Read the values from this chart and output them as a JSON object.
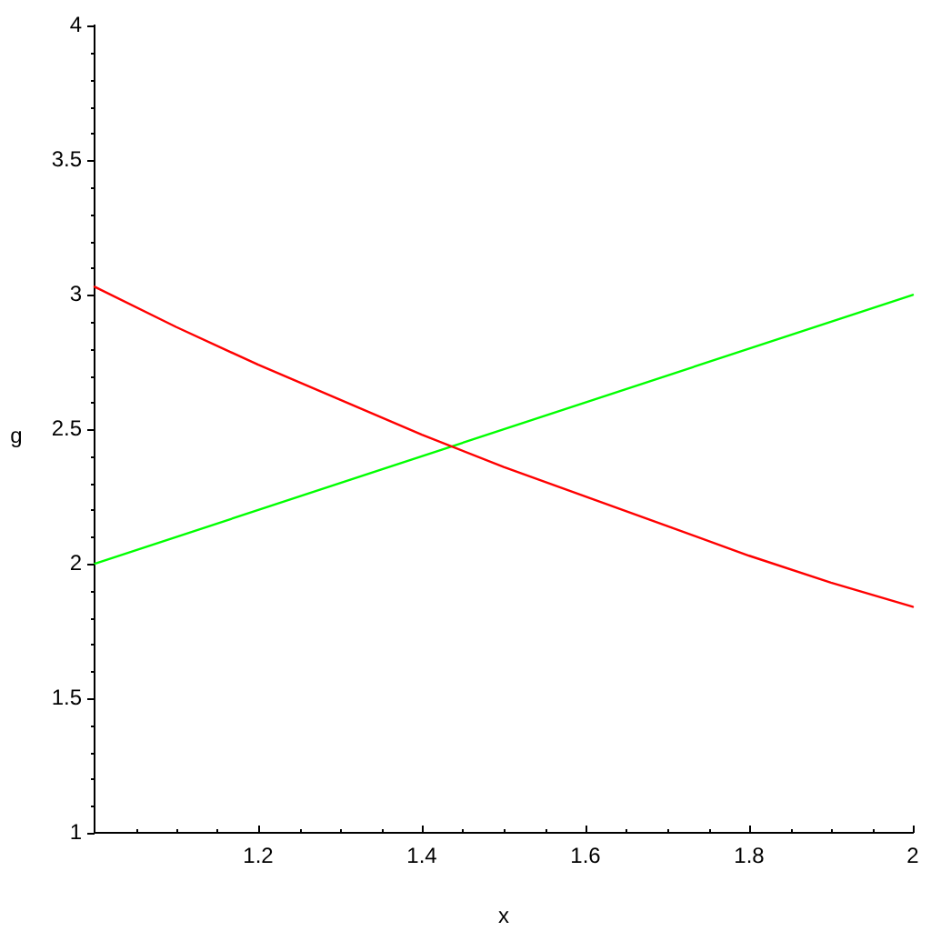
{
  "chart_data": {
    "type": "line",
    "xlabel": "x",
    "ylabel": "g",
    "series": [
      {
        "color": "#ff0000",
        "x": [
          1,
          1.1,
          1.2,
          1.3,
          1.4,
          1.5,
          1.6,
          1.7,
          1.8,
          1.9,
          2
        ],
        "values": [
          3.03,
          2.88,
          2.74,
          2.61,
          2.48,
          2.36,
          2.25,
          2.14,
          2.03,
          1.93,
          1.84
        ]
      },
      {
        "color": "#00ff00",
        "x": [
          1,
          2
        ],
        "values": [
          2,
          3
        ]
      }
    ],
    "xlim": [
      1,
      2
    ],
    "ylim": [
      1,
      4
    ],
    "xticks": [
      {
        "value": 1.05,
        "label": null
      },
      {
        "value": 1.1,
        "label": null
      },
      {
        "value": 1.15,
        "label": null
      },
      1.2,
      {
        "value": 1.25,
        "label": null
      },
      {
        "value": 1.3,
        "label": null
      },
      {
        "value": 1.35,
        "label": null
      },
      1.4,
      {
        "value": 1.45,
        "label": null
      },
      {
        "value": 1.5,
        "label": null
      },
      {
        "value": 1.55,
        "label": null
      },
      1.6,
      {
        "value": 1.65,
        "label": null
      },
      {
        "value": 1.7,
        "label": null
      },
      {
        "value": 1.75,
        "label": null
      },
      1.8,
      {
        "value": 1.85,
        "label": null
      },
      {
        "value": 1.9,
        "label": null
      },
      {
        "value": 1.95,
        "label": null
      },
      2
    ],
    "yticks": [
      1,
      {
        "value": 1.1,
        "label": null
      },
      {
        "value": 1.2,
        "label": null
      },
      {
        "value": 1.3,
        "label": null
      },
      {
        "value": 1.4,
        "label": null
      },
      1.5,
      {
        "value": 1.6,
        "label": null
      },
      {
        "value": 1.7,
        "label": null
      },
      {
        "value": 1.8,
        "label": null
      },
      {
        "value": 1.9,
        "label": null
      },
      2,
      {
        "value": 2.1,
        "label": null
      },
      {
        "value": 2.2,
        "label": null
      },
      {
        "value": 2.3,
        "label": null
      },
      {
        "value": 2.4,
        "label": null
      },
      2.5,
      {
        "value": 2.6,
        "label": null
      },
      {
        "value": 2.7,
        "label": null
      },
      {
        "value": 2.8,
        "label": null
      },
      {
        "value": 2.9,
        "label": null
      },
      3,
      {
        "value": 3.1,
        "label": null
      },
      {
        "value": 3.2,
        "label": null
      },
      {
        "value": 3.3,
        "label": null
      },
      {
        "value": 3.4,
        "label": null
      },
      3.5,
      {
        "value": 3.6,
        "label": null
      },
      {
        "value": 3.7,
        "label": null
      },
      {
        "value": 3.8,
        "label": null
      },
      {
        "value": 3.9,
        "label": null
      },
      4
    ],
    "grid": false,
    "legend": false,
    "marker": "none",
    "line_style": "solid"
  }
}
